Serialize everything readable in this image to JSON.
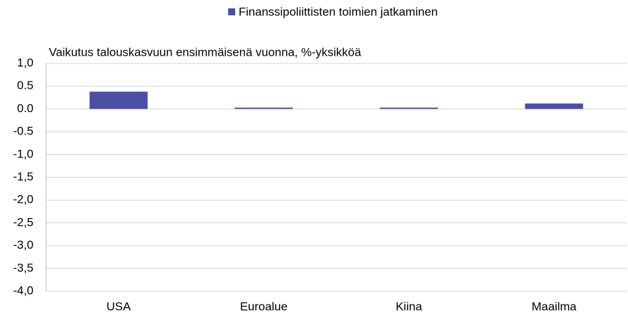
{
  "chart_data": {
    "type": "bar",
    "subtitle": "Vaikutus talouskasvuun ensimmäisenä vuonna, %-yksikköä",
    "categories": [
      "USA",
      "Euroalue",
      "Kiina",
      "Maailma"
    ],
    "series": [
      {
        "name": "Finanssipoliittisten toimien jatkaminen",
        "color": "#4a4fa3",
        "values": [
          0.38,
          0.03,
          0.03,
          0.12
        ]
      }
    ],
    "ylim": [
      -4,
      1
    ],
    "yticks": [
      {
        "value": 1,
        "label": "1,0"
      },
      0.5,
      {
        "value": 0,
        "label": "0.0"
      },
      -0.5,
      {
        "value": -1,
        "label": "-1,0"
      },
      {
        "value": -1.5,
        "label": "-1,5"
      },
      {
        "value": -2,
        "label": "-2,0"
      },
      {
        "value": -2.5,
        "label": "-2,5"
      },
      {
        "value": -3,
        "label": "-3,0"
      },
      {
        "value": -3.5,
        "label": "-3,5"
      },
      {
        "value": -4,
        "label": "-4,0"
      }
    ],
    "grid": true,
    "legend": "top"
  }
}
